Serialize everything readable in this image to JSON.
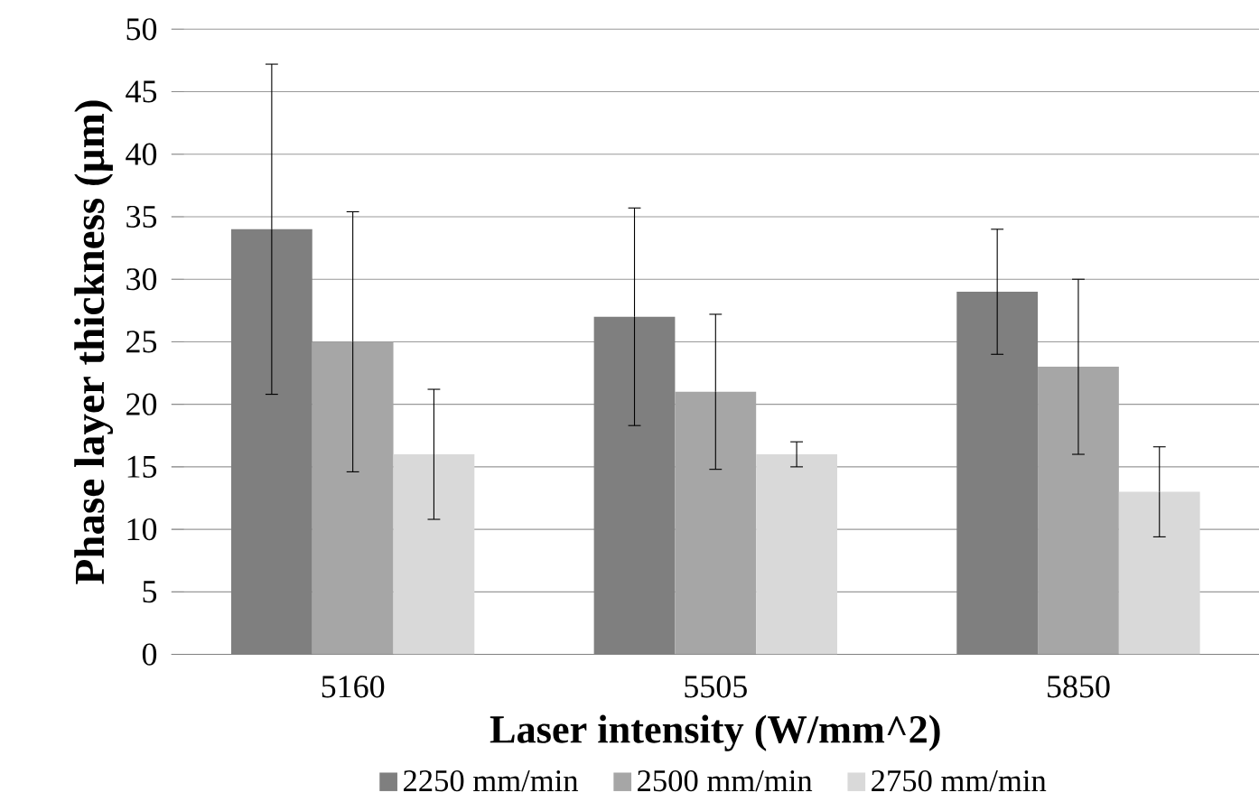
{
  "chart_data": {
    "type": "bar",
    "xlabel": "Laser intensity (W/mm^2)",
    "ylabel": "Phase layer thickness (µm)",
    "categories": [
      "5160",
      "5505",
      "5850"
    ],
    "series": [
      {
        "name": "2250 mm/min",
        "color": "#7f7f7f",
        "values": [
          34,
          27,
          29
        ],
        "errors": [
          13.2,
          8.7,
          5
        ]
      },
      {
        "name": "2500 mm/min",
        "color": "#a6a6a6",
        "values": [
          25,
          21,
          23
        ],
        "errors": [
          10.4,
          6.2,
          7
        ]
      },
      {
        "name": "2750 mm/min",
        "color": "#d9d9d9",
        "values": [
          16,
          16,
          13
        ],
        "errors": [
          5.2,
          1,
          3.6
        ]
      }
    ],
    "ylim": [
      0,
      50
    ],
    "yticks": [
      0,
      5,
      10,
      15,
      20,
      25,
      30,
      35,
      40,
      45,
      50
    ],
    "grid": "y",
    "legend": "bottom"
  }
}
